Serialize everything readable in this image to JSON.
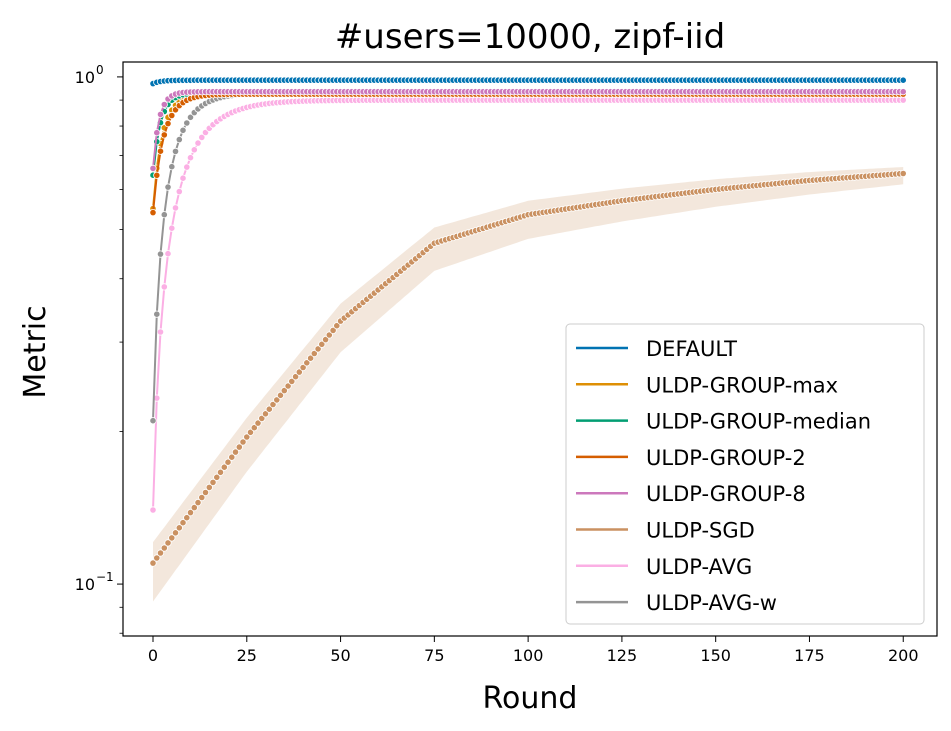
{
  "chart_data": {
    "type": "line",
    "title": "#users=10000, zipf-iid",
    "xlabel": "Round",
    "ylabel": "Metric",
    "yscale": "log",
    "xlim": [
      -8,
      209
    ],
    "ylim": [
      0.079,
      1.07
    ],
    "xticks": [
      0,
      25,
      50,
      75,
      100,
      125,
      150,
      175,
      200
    ],
    "xtick_labels": [
      "0",
      "25",
      "50",
      "75",
      "100",
      "125",
      "150",
      "175",
      "200"
    ],
    "ytick_labels": {
      "1": "10",
      "0.1": "10"
    },
    "ytick_exponents": {
      "1": "0",
      "0.1": "−1"
    },
    "grid": false,
    "legend_position": "lower-right",
    "series": [
      {
        "name": "DEFAULT",
        "color": "#0173b2",
        "start": 0.97,
        "end": 0.985,
        "k": 0.5,
        "band_start": 0,
        "band_end": 0
      },
      {
        "name": "ULDP-GROUP-max",
        "color": "#de8f05",
        "start": 0.55,
        "end": 0.925,
        "k": 0.35,
        "band_start": 0,
        "band_end": 0
      },
      {
        "name": "ULDP-GROUP-median",
        "color": "#029e73",
        "start": 0.64,
        "end": 0.93,
        "k": 0.45,
        "band_start": 0,
        "band_end": 0
      },
      {
        "name": "ULDP-GROUP-2",
        "color": "#d55e00",
        "start": 0.54,
        "end": 0.925,
        "k": 0.3,
        "band_start": 0,
        "band_end": 0
      },
      {
        "name": "ULDP-GROUP-8",
        "color": "#cc78bc",
        "start": 0.66,
        "end": 0.935,
        "k": 0.55,
        "band_start": 0,
        "band_end": 0
      },
      {
        "name": "ULDP-SGD",
        "color": "#ca9161",
        "start": 0.11,
        "end": 0.645,
        "k": 0,
        "band_start": 0.1,
        "band_end": 0.03
      },
      {
        "name": "ULDP-AVG",
        "color": "#fbafe4",
        "start": 0.14,
        "end": 0.9,
        "k": 0.13,
        "band_start": 0,
        "band_end": 0
      },
      {
        "name": "ULDP-AVG-w",
        "color": "#949494",
        "start": 0.21,
        "end": 0.93,
        "k": 0.2,
        "band_start": 0,
        "band_end": 0
      }
    ],
    "uldp_sgd_anchors": {
      "x": [
        0,
        25,
        50,
        75,
        100,
        125,
        150,
        175,
        200
      ],
      "y": [
        0.11,
        0.195,
        0.33,
        0.47,
        0.535,
        0.57,
        0.6,
        0.625,
        0.645
      ]
    }
  }
}
